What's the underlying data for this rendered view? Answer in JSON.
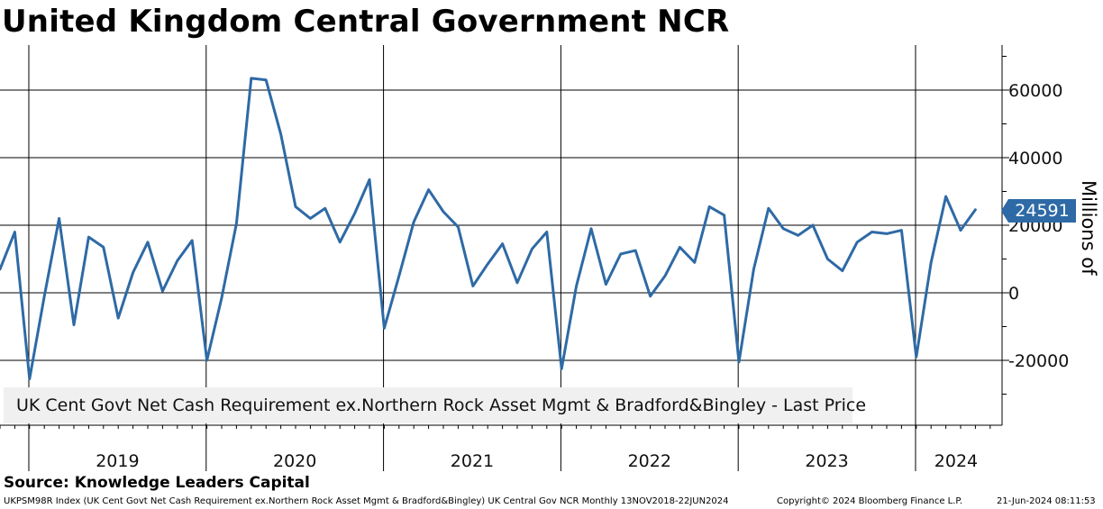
{
  "title": "United Kingdom Central Government NCR",
  "source": "Source: Knowledge Leaders Capital",
  "footer": {
    "ticker": "UKPSM98R Index (UK Cent Govt Net Cash Requirement ex.Northern Rock Asset Mgmt & Bradford&Bingley) UK Central Gov NCR  Monthly 13NOV2018-22JUN2024",
    "copyright": "Copyright© 2024 Bloomberg Finance L.P.",
    "timestamp": "21-Jun-2024 08:11:53"
  },
  "legend": {
    "label": "UK Cent Govt Net Cash Requirement ex.Northern Rock Asset Mgmt & Bradford&Bingley - Last Price"
  },
  "last_value_label": "24591",
  "colors": {
    "series": "#2e6aa5",
    "badge": "#2e6aa5",
    "legend_bg": "#f0f0f0"
  },
  "chart_data": {
    "type": "line",
    "title": "United Kingdom Central Government NCR",
    "ylabel": "Millions of",
    "xlabel": "",
    "ylim": [
      -38000,
      72000
    ],
    "yticks": [
      -20000,
      0,
      20000,
      40000,
      60000
    ],
    "ytick_labels": [
      "-20000",
      "0",
      "20000",
      "40000",
      "60000"
    ],
    "year_labels": [
      "2019",
      "2020",
      "2021",
      "2022",
      "2023",
      "2024"
    ],
    "start": "2018-11",
    "series": [
      {
        "name": "UK Cent Govt Net Cash Requirement ex.Northern Rock Asset Mgmt & Bradford&Bingley - Last Price",
        "values": [
          7000,
          18000,
          -25500,
          -1000,
          22000,
          -9500,
          16500,
          13500,
          -7500,
          6000,
          15000,
          500,
          9500,
          15500,
          -20000,
          -1500,
          20500,
          63500,
          63000,
          47000,
          25500,
          22000,
          25000,
          15000,
          23500,
          33500,
          -10500,
          5000,
          21000,
          30500,
          24000,
          19500,
          2000,
          8500,
          14500,
          3000,
          13000,
          18000,
          -22500,
          2000,
          19000,
          2500,
          11500,
          12500,
          -1000,
          5000,
          13500,
          9000,
          25500,
          23000,
          -20500,
          7000,
          25000,
          19000,
          17000,
          20000,
          10000,
          6500,
          15000,
          18000,
          17500,
          18500,
          -19000,
          9000,
          28500,
          18500,
          24591
        ]
      }
    ]
  }
}
